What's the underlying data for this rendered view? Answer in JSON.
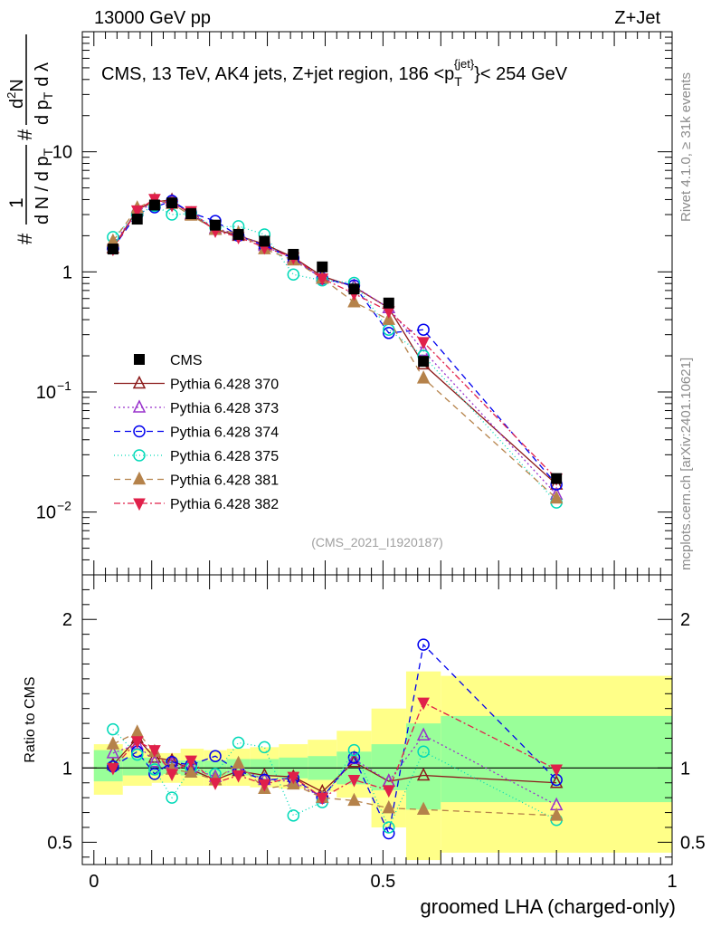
{
  "header": {
    "left": "13000 GeV pp",
    "right": "Z+Jet"
  },
  "chart_data": [
    {
      "type": "scatter",
      "panel": "main",
      "title": "CMS, 13 TeV, AK4 jets, Z+jet region, 186 <p",
      "title_sub": "T",
      "title_sup": "{jet}",
      "title_tail": "}< 254 GeV",
      "ylabel_parts": [
        "#",
        "1",
        "d N / d p",
        "T",
        "#",
        "d",
        "2",
        "N",
        "d p",
        "T",
        "d λ"
      ],
      "yscale": "log",
      "ylim": [
        0.003,
        100
      ],
      "xlim": [
        -0.02,
        1.0
      ],
      "ytick_labels": [
        {
          "value": 0.01,
          "base": "10",
          "exp": "−2"
        },
        {
          "value": 0.1,
          "base": "10",
          "exp": "−1"
        },
        {
          "value": 1,
          "base": "1",
          "exp": ""
        },
        {
          "value": 10,
          "base": "10",
          "exp": ""
        }
      ],
      "side_label_top": "Rivet 4.1.0, ≥ 31k events",
      "side_label_bottom": "mcplots.cern.ch [arXiv:2401.10621]",
      "analysis_label": "(CMS_2021_I1920187)",
      "x": [
        0.033,
        0.075,
        0.105,
        0.135,
        0.168,
        0.21,
        0.25,
        0.295,
        0.345,
        0.395,
        0.45,
        0.51,
        0.57,
        0.8
      ],
      "series": [
        {
          "name": "CMS",
          "marker": "square",
          "color": "#000000",
          "dash": "none",
          "values": [
            1.55,
            2.75,
            3.6,
            3.75,
            3.05,
            2.45,
            2.05,
            1.8,
            1.4,
            1.1,
            0.72,
            0.55,
            0.18,
            0.019
          ]
        },
        {
          "name": "Pythia 6.428 370",
          "marker": "triangle-up-open",
          "color": "#8b1a1a",
          "dash": "none",
          "values": [
            1.58,
            3.3,
            3.85,
            3.95,
            3.0,
            2.25,
            2.0,
            1.7,
            1.32,
            0.92,
            0.75,
            0.5,
            0.17,
            0.017
          ]
        },
        {
          "name": "Pythia 6.428 373",
          "marker": "triangle-up-open",
          "color": "#9932cc",
          "dash": "2,3",
          "values": [
            1.7,
            3.2,
            3.75,
            3.85,
            3.05,
            2.3,
            2.05,
            1.65,
            1.28,
            0.88,
            0.76,
            0.5,
            0.22,
            0.014
          ]
        },
        {
          "name": "Pythia 6.428 374",
          "marker": "circle-open",
          "color": "#0000ee",
          "dash": "7,5",
          "values": [
            1.57,
            3.05,
            3.45,
            3.9,
            3.1,
            2.65,
            2.0,
            1.65,
            1.3,
            0.88,
            0.77,
            0.31,
            0.33,
            0.017
          ]
        },
        {
          "name": "Pythia 6.428 375",
          "marker": "circle-open",
          "color": "#00d9b8",
          "dash": "1,3",
          "values": [
            1.95,
            3.0,
            3.55,
            3.0,
            3.05,
            2.35,
            2.4,
            2.05,
            0.95,
            0.85,
            0.81,
            0.33,
            0.2,
            0.012
          ]
        },
        {
          "name": "Pythia 6.428 381",
          "marker": "triangle-up-filled",
          "color": "#b5824a",
          "dash": "7,5",
          "values": [
            1.8,
            3.4,
            4.0,
            3.7,
            2.95,
            2.25,
            2.1,
            1.55,
            1.25,
            0.88,
            0.56,
            0.4,
            0.13,
            0.013
          ]
        },
        {
          "name": "Pythia 6.428 382",
          "marker": "triangle-down-filled",
          "color": "#e0204a",
          "dash": "7,3,2,3",
          "values": [
            1.55,
            3.25,
            4.05,
            3.6,
            3.2,
            2.2,
            1.95,
            1.6,
            1.32,
            0.88,
            0.66,
            0.47,
            0.26,
            0.019
          ]
        }
      ]
    },
    {
      "type": "scatter",
      "panel": "ratio",
      "ylabel": "Ratio to CMS",
      "ylim": [
        0.35,
        2.3
      ],
      "xlim": [
        -0.02,
        1.0
      ],
      "xlabel": "groomed LHA (charged-only)",
      "ytick_labels": [
        "0.5",
        "1",
        "2"
      ],
      "ytick_values": [
        0.5,
        1,
        2
      ],
      "xtick_labels": [
        "0",
        "0.5",
        "1"
      ],
      "xtick_values": [
        0,
        0.5,
        1
      ],
      "bins": [
        {
          "x0": 0.0,
          "x1": 0.05,
          "g_lo": 0.91,
          "g_hi": 1.12,
          "y_lo": 0.82,
          "y_hi": 1.16
        },
        {
          "x0": 0.05,
          "x1": 0.1,
          "g_lo": 0.95,
          "g_hi": 1.07,
          "y_lo": 0.88,
          "y_hi": 1.13
        },
        {
          "x0": 0.1,
          "x1": 0.12,
          "g_lo": 0.95,
          "g_hi": 1.05,
          "y_lo": 0.9,
          "y_hi": 1.1
        },
        {
          "x0": 0.12,
          "x1": 0.15,
          "g_lo": 0.96,
          "g_hi": 1.05,
          "y_lo": 0.9,
          "y_hi": 1.1
        },
        {
          "x0": 0.15,
          "x1": 0.19,
          "g_lo": 0.95,
          "g_hi": 1.05,
          "y_lo": 0.88,
          "y_hi": 1.13
        },
        {
          "x0": 0.19,
          "x1": 0.23,
          "g_lo": 0.95,
          "g_hi": 1.05,
          "y_lo": 0.88,
          "y_hi": 1.12
        },
        {
          "x0": 0.23,
          "x1": 0.27,
          "g_lo": 0.95,
          "g_hi": 1.06,
          "y_lo": 0.88,
          "y_hi": 1.13
        },
        {
          "x0": 0.27,
          "x1": 0.32,
          "g_lo": 0.94,
          "g_hi": 1.06,
          "y_lo": 0.87,
          "y_hi": 1.14
        },
        {
          "x0": 0.32,
          "x1": 0.37,
          "g_lo": 0.93,
          "g_hi": 1.07,
          "y_lo": 0.86,
          "y_hi": 1.16
        },
        {
          "x0": 0.37,
          "x1": 0.42,
          "g_lo": 0.92,
          "g_hi": 1.08,
          "y_lo": 0.84,
          "y_hi": 1.19
        },
        {
          "x0": 0.42,
          "x1": 0.48,
          "g_lo": 0.89,
          "g_hi": 1.11,
          "y_lo": 0.8,
          "y_hi": 1.25
        },
        {
          "x0": 0.48,
          "x1": 0.54,
          "g_lo": 0.85,
          "g_hi": 1.16,
          "y_lo": 0.6,
          "y_hi": 1.4
        },
        {
          "x0": 0.54,
          "x1": 0.6,
          "g_lo": 0.72,
          "g_hi": 1.3,
          "y_lo": 0.38,
          "y_hi": 1.65
        },
        {
          "x0": 0.6,
          "x1": 1.0,
          "g_lo": 0.77,
          "g_hi": 1.35,
          "y_lo": 0.43,
          "y_hi": 1.62
        }
      ],
      "x": [
        0.033,
        0.075,
        0.105,
        0.135,
        0.168,
        0.21,
        0.25,
        0.295,
        0.345,
        0.395,
        0.45,
        0.51,
        0.57,
        0.8
      ],
      "series": [
        {
          "name": "Pythia 6.428 370",
          "values": [
            1.02,
            1.2,
            1.07,
            1.05,
            0.99,
            0.92,
            0.98,
            0.95,
            0.94,
            0.84,
            1.04,
            0.91,
            0.95,
            0.9
          ]
        },
        {
          "name": "Pythia 6.428 373",
          "values": [
            1.1,
            1.16,
            1.04,
            1.03,
            1.0,
            0.94,
            1.0,
            0.92,
            0.91,
            0.8,
            1.06,
            0.91,
            1.22,
            0.75
          ]
        },
        {
          "name": "Pythia 6.428 374",
          "values": [
            1.01,
            1.11,
            0.96,
            1.04,
            1.02,
            1.08,
            0.98,
            0.92,
            0.93,
            0.8,
            1.07,
            0.56,
            1.83,
            0.92
          ]
        },
        {
          "name": "Pythia 6.428 375",
          "values": [
            1.26,
            1.09,
            0.99,
            0.8,
            1.0,
            0.96,
            1.17,
            1.14,
            0.68,
            0.77,
            1.12,
            0.6,
            1.11,
            0.65
          ]
        },
        {
          "name": "Pythia 6.428 381",
          "values": [
            1.16,
            1.24,
            1.11,
            0.99,
            0.97,
            0.92,
            1.03,
            0.86,
            0.89,
            0.8,
            0.78,
            0.73,
            0.72,
            0.68
          ]
        },
        {
          "name": "Pythia 6.428 382",
          "values": [
            1.0,
            1.18,
            1.12,
            0.96,
            1.05,
            0.9,
            0.95,
            0.89,
            0.94,
            0.8,
            0.92,
            0.85,
            1.44,
            0.99
          ]
        }
      ]
    }
  ]
}
